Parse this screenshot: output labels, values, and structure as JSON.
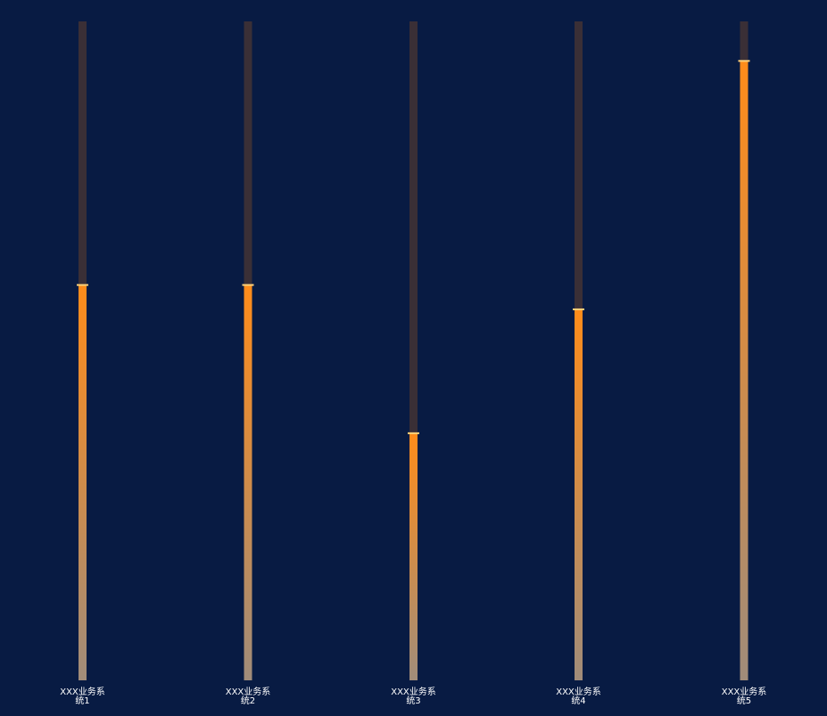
{
  "chart_data": {
    "type": "bar",
    "categories": [
      [
        "XXX业务系",
        "统1"
      ],
      [
        "XXX业务系",
        "统2"
      ],
      [
        "XXX业务系",
        "统3"
      ],
      [
        "XXX业务系",
        "统4"
      ],
      [
        "XXX业务系",
        "统5"
      ]
    ],
    "values": [
      60,
      60,
      37.5,
      56.3,
      94
    ],
    "ylim": [
      0,
      100
    ],
    "colors": {
      "background": "#081b43",
      "track": "#3a2f36",
      "bar_top": "#ff8c1a",
      "bar_bottom": "#a08c7a",
      "cap": "#ffd27a",
      "label": "#ffffff"
    }
  }
}
